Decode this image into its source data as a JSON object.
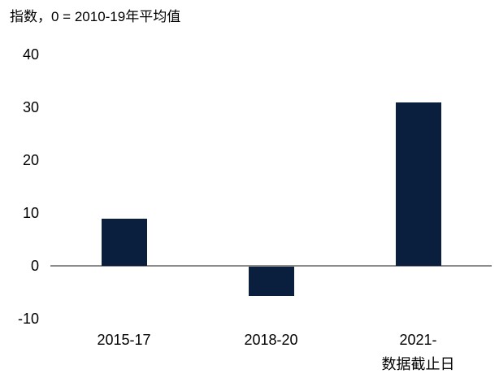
{
  "chart_data": {
    "type": "bar",
    "title": "指数，0 = 2010-19年平均值",
    "categories": [
      [
        "2015-17"
      ],
      [
        "2018-20"
      ],
      [
        "2021-",
        "数据截止日"
      ]
    ],
    "values": [
      9,
      -5.5,
      31
    ],
    "ylim": [
      -10,
      40
    ],
    "yticks": [
      40,
      30,
      20,
      10,
      0,
      -10
    ],
    "xlabel": "",
    "ylabel": "",
    "grid": false,
    "legend_position": "none",
    "bar_color": "#0a1f3e",
    "zero_line_color": "#8c8c8c",
    "text_color": "#000000"
  }
}
